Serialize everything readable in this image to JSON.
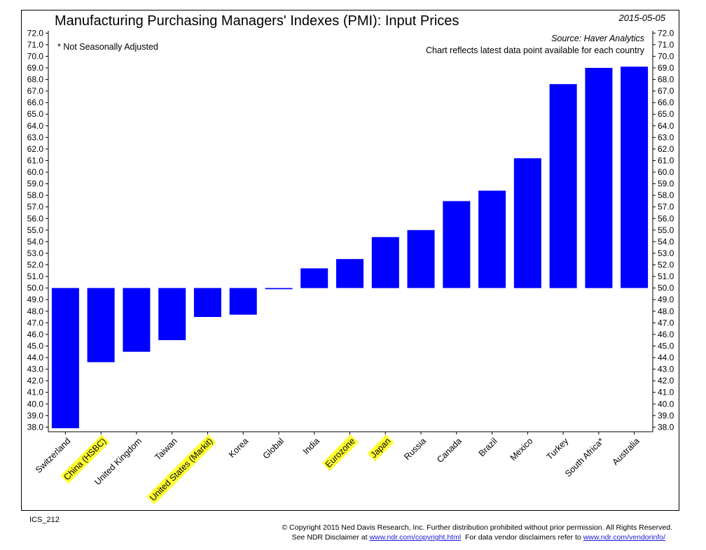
{
  "header": {
    "title": "Manufacturing Purchasing Managers' Indexes (PMI): Input Prices",
    "date": "2015-05-05",
    "note": "* Not Seasonally Adjusted",
    "source": "Source:  Haver Analytics",
    "chart_note": "Chart reflects latest data point available for each country"
  },
  "footer": {
    "code": "ICS_212",
    "copyright": "© Copyright 2015 Ned Davis Research, Inc. Further distribution prohibited without prior permission. All Rights Reserved.",
    "disclaimer_prefix": "See NDR Disclaimer at ",
    "disclaimer_link": "www.ndr.com/copyright.html",
    "vendor_prefix": "  For data vendor disclaimers refer to ",
    "vendor_link": "www.ndr.com/vendorinfo/"
  },
  "colors": {
    "bar": "#0000ff",
    "highlight": "#ffff33",
    "link": "#1a1adb"
  },
  "chart_data": {
    "type": "bar",
    "baseline": 50.0,
    "ylim": [
      38.0,
      72.0
    ],
    "ytick_step": 1,
    "yticks_both_sides": true,
    "grid": false,
    "categories": [
      "Switzerland",
      "China (HSBC)",
      "United Kingdom",
      "Taiwan",
      "United States (Markit)",
      "Korea",
      "Global",
      "India",
      "Eurozone",
      "Japan",
      "Russia",
      "Canada",
      "Brazil",
      "Mexico",
      "Turkey",
      "South Africa*",
      "Australia"
    ],
    "highlighted": [
      "China (HSBC)",
      "United States (Markit)",
      "Eurozone",
      "Japan"
    ],
    "values": [
      37.9,
      43.6,
      44.5,
      45.5,
      47.5,
      47.7,
      49.9,
      51.7,
      52.5,
      54.4,
      55.0,
      57.5,
      58.4,
      61.2,
      67.6,
      69.0,
      69.1
    ]
  }
}
